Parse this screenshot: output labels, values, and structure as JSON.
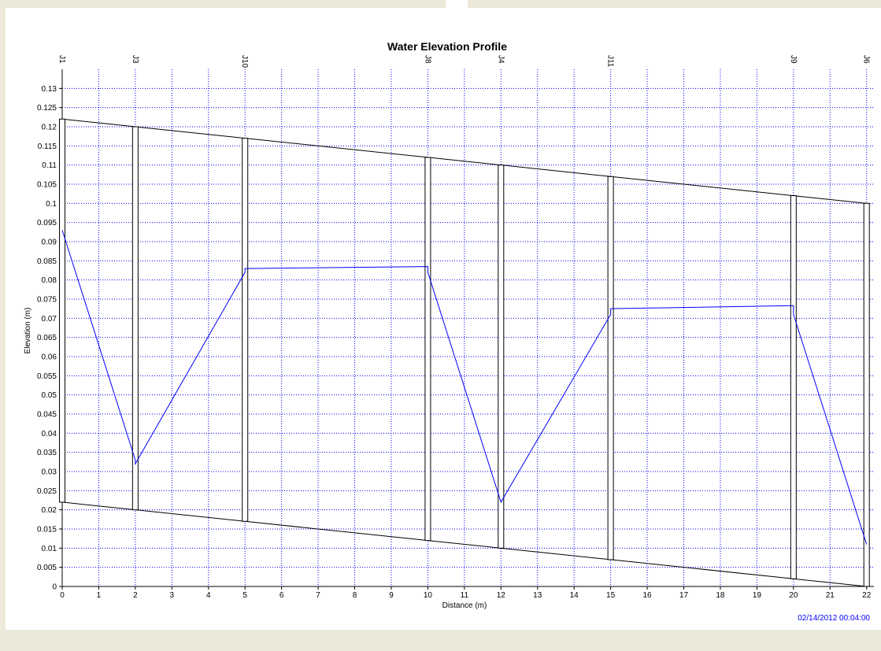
{
  "chart_data": {
    "type": "profile",
    "title": "Water Elevation Profile",
    "x_label": "Distance (m)",
    "y_label": "Elevation (m)",
    "timestamp": "02/14/2012 00:04:00",
    "xlim": [
      0,
      22.2
    ],
    "ylim": [
      0,
      0.135
    ],
    "xticks": [
      0,
      1,
      2,
      3,
      4,
      5,
      6,
      7,
      8,
      9,
      10,
      11,
      12,
      13,
      14,
      15,
      16,
      17,
      18,
      19,
      20,
      21,
      22
    ],
    "yticks": [
      0,
      0.005,
      0.01,
      0.015,
      0.02,
      0.025,
      0.03,
      0.035,
      0.04,
      0.045,
      0.05,
      0.055,
      0.06,
      0.065,
      0.07,
      0.075,
      0.08,
      0.085,
      0.09,
      0.095,
      0.1,
      0.105,
      0.11,
      0.115,
      0.12,
      0.125,
      0.13
    ],
    "grid": true,
    "nodes": {
      "names": [
        "J1",
        "J3",
        "J10",
        "J8",
        "J4",
        "J11",
        "J9",
        "J6"
      ],
      "x": [
        0,
        2,
        5,
        10,
        12,
        15,
        20,
        22
      ],
      "invert": [
        0.022,
        0.02,
        0.017,
        0.012,
        0.01,
        0.007,
        0.002,
        0
      ],
      "top": [
        0.122,
        0.12,
        0.117,
        0.112,
        0.11,
        0.107,
        0.102,
        0.1
      ]
    },
    "water": {
      "color": "#0000ff",
      "x": [
        0,
        2,
        2,
        5,
        5,
        10,
        10,
        12,
        12,
        15,
        15,
        20,
        20,
        22
      ],
      "values": [
        0.093,
        0.033,
        0.032,
        0.082,
        0.083,
        0.0835,
        0.082,
        0.022,
        0.022,
        0.071,
        0.0725,
        0.0733,
        0.071,
        0.011
      ]
    }
  }
}
